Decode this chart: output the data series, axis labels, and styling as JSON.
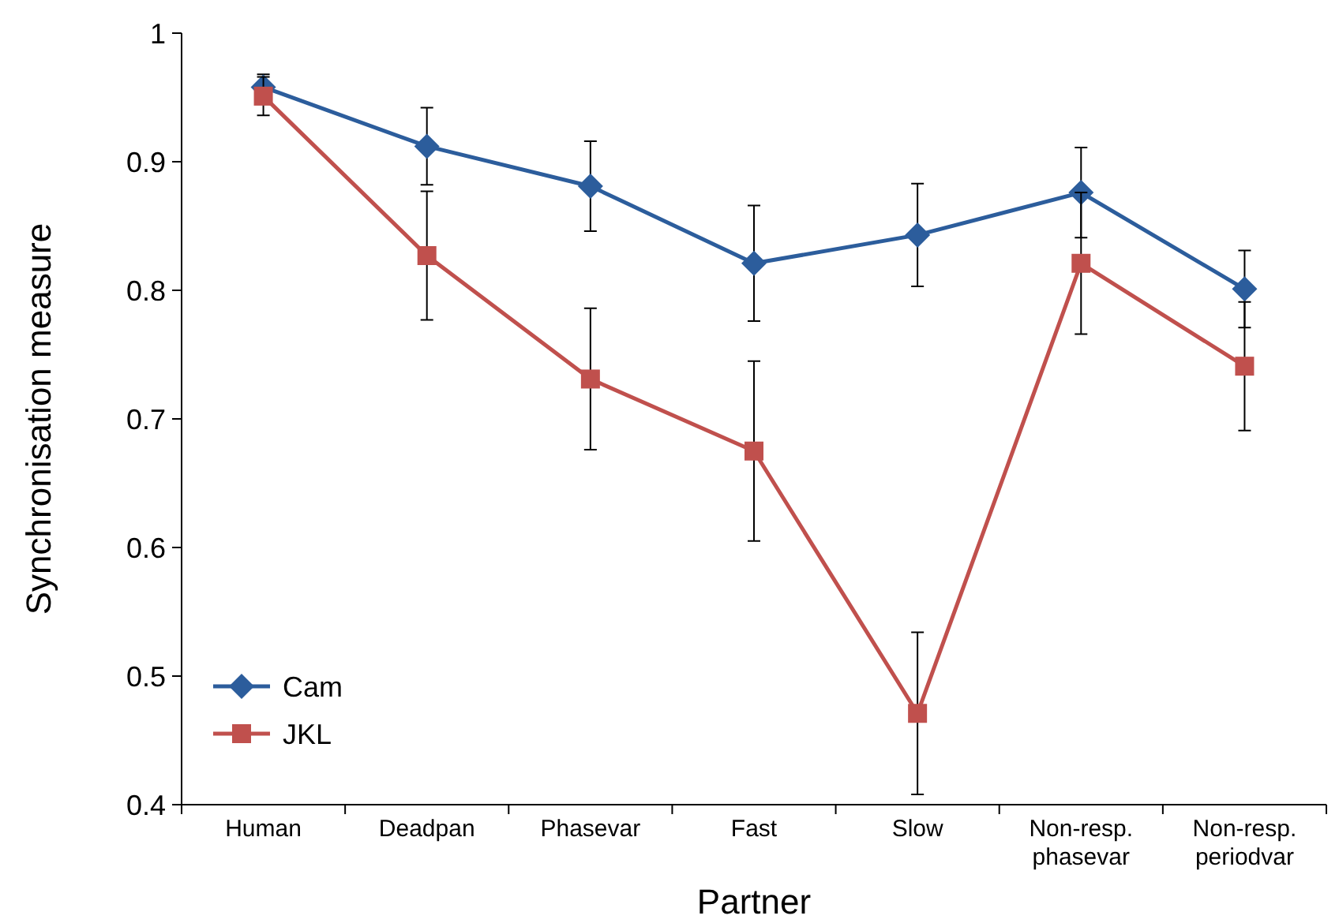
{
  "chart_data": {
    "type": "line",
    "xlabel": "Partner",
    "ylabel": "Synchronisation measure",
    "categories": [
      "Human",
      "Deadpan",
      "Phasevar",
      "Fast",
      "Slow",
      "Non-resp.\nphasevar",
      "Non-resp.\nperiodvar"
    ],
    "series": [
      {
        "name": "Cam",
        "color": "#2c5d9c",
        "marker": "diamond",
        "values": [
          0.958,
          0.912,
          0.881,
          0.821,
          0.843,
          0.876,
          0.801
        ],
        "errors": [
          0.01,
          0.03,
          0.035,
          0.045,
          0.04,
          0.035,
          0.03
        ]
      },
      {
        "name": "JKL",
        "color": "#c0504d",
        "marker": "square",
        "values": [
          0.951,
          0.827,
          0.731,
          0.675,
          0.471,
          0.821,
          0.741
        ],
        "errors": [
          0.015,
          0.05,
          0.055,
          0.07,
          0.063,
          0.055,
          0.05
        ]
      }
    ],
    "ylim": [
      0.4,
      1
    ],
    "yticks": [
      0.4,
      0.5,
      0.6,
      0.7,
      0.8,
      0.9,
      {
        "value": 1,
        "label": "1"
      }
    ],
    "grid": false,
    "legend": "bottom left",
    "line_style": "solid"
  }
}
